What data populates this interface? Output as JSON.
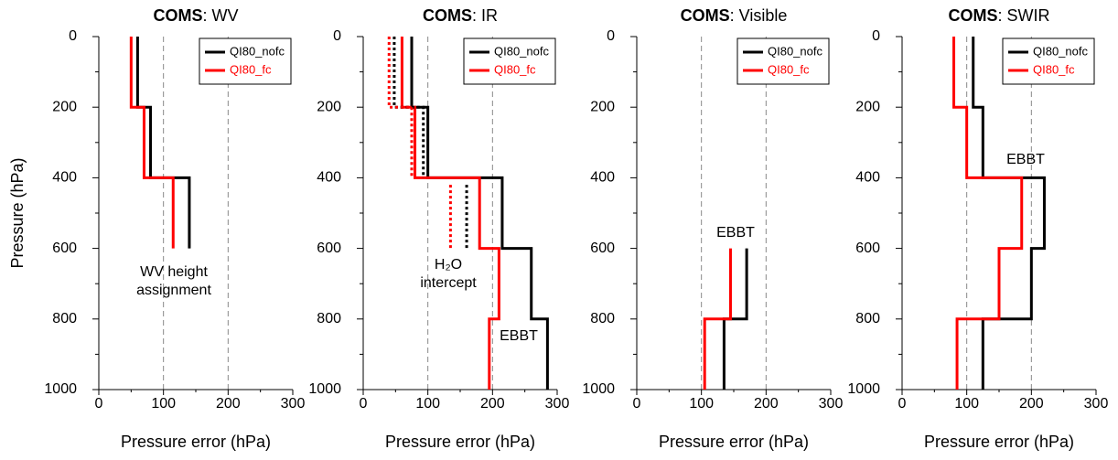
{
  "chart_data": [
    {
      "type": "line",
      "title_prefix": "COMS",
      "title": ": WV",
      "xlabel": "Pressure error (hPa)",
      "ylabel": "Pressure (hPa)",
      "xlim": [
        0,
        300
      ],
      "xticks": [
        0,
        100,
        200,
        300
      ],
      "ylim": [
        1000,
        0
      ],
      "yticks": [
        0,
        200,
        400,
        600,
        800,
        1000
      ],
      "grid": true,
      "legend": "upper right",
      "series": [
        {
          "name": "QI80_nofc",
          "color": "#000000",
          "x": [
            60,
            60,
            80,
            80,
            140,
            140
          ],
          "y": [
            0,
            200,
            200,
            400,
            400,
            600
          ]
        },
        {
          "name": "QI80_fc",
          "color": "#ff0000",
          "x": [
            50,
            50,
            70,
            70,
            115,
            115
          ],
          "y": [
            0,
            200,
            200,
            400,
            400,
            600
          ]
        }
      ],
      "annotations": [
        [
          "WV height",
          "assignment"
        ]
      ]
    },
    {
      "type": "line",
      "title_prefix": "COMS",
      "title": ": IR",
      "xlabel": "Pressure error (hPa)",
      "xlim": [
        0,
        300
      ],
      "xticks": [
        0,
        100,
        200,
        300
      ],
      "ylim": [
        1000,
        0
      ],
      "yticks": [
        0,
        200,
        400,
        600,
        800,
        1000
      ],
      "grid": true,
      "legend": "upper right",
      "series": [
        {
          "name": "QI80_nofc",
          "color": "#000000",
          "x": [
            75,
            75,
            100,
            100,
            215,
            215,
            260,
            260,
            285,
            285
          ],
          "y": [
            0,
            200,
            200,
            400,
            400,
            600,
            600,
            800,
            800,
            1000
          ]
        },
        {
          "name": "QI80_fc",
          "color": "#ff0000",
          "x": [
            60,
            60,
            80,
            80,
            180,
            180,
            210,
            210,
            195,
            195
          ],
          "y": [
            0,
            200,
            200,
            400,
            400,
            600,
            600,
            800,
            800,
            1000
          ]
        },
        {
          "color": "#000000",
          "dash": true,
          "x": [
            48,
            48,
            93,
            93,
            null,
            160,
            160
          ],
          "y": [
            0,
            200,
            200,
            400,
            null,
            420,
            600
          ]
        },
        {
          "color": "#ff0000",
          "dash": true,
          "x": [
            40,
            40,
            75,
            75,
            null,
            135,
            135
          ],
          "y": [
            0,
            200,
            200,
            400,
            null,
            420,
            600
          ]
        }
      ],
      "annotations": [
        [
          "H₂O",
          "intercept"
        ],
        [
          "EBBT"
        ]
      ]
    },
    {
      "type": "line",
      "title_prefix": "COMS",
      "title": ": Visible",
      "xlabel": "Pressure error (hPa)",
      "xlim": [
        0,
        300
      ],
      "xticks": [
        0,
        100,
        200,
        300
      ],
      "ylim": [
        1000,
        0
      ],
      "yticks": [
        0,
        200,
        400,
        600,
        800,
        1000
      ],
      "grid": true,
      "legend": "upper right",
      "series": [
        {
          "name": "QI80_nofc",
          "color": "#000000",
          "x": [
            170,
            170,
            135,
            135
          ],
          "y": [
            600,
            800,
            800,
            1000
          ]
        },
        {
          "name": "QI80_fc",
          "color": "#ff0000",
          "x": [
            145,
            145,
            105,
            105
          ],
          "y": [
            600,
            800,
            800,
            1000
          ]
        }
      ],
      "annotations": [
        [
          "EBBT"
        ]
      ]
    },
    {
      "type": "line",
      "title_prefix": "COMS",
      "title": ": SWIR",
      "xlabel": "Pressure error (hPa)",
      "xlim": [
        0,
        300
      ],
      "xticks": [
        0,
        100,
        200,
        300
      ],
      "ylim": [
        1000,
        0
      ],
      "yticks": [
        0,
        200,
        400,
        600,
        800,
        1000
      ],
      "grid": true,
      "legend": "upper right",
      "series": [
        {
          "name": "QI80_nofc",
          "color": "#000000",
          "x": [
            110,
            110,
            125,
            125,
            220,
            220,
            200,
            200,
            125,
            125
          ],
          "y": [
            0,
            200,
            200,
            400,
            400,
            600,
            600,
            800,
            800,
            1000
          ]
        },
        {
          "name": "QI80_fc",
          "color": "#ff0000",
          "x": [
            80,
            80,
            100,
            100,
            185,
            185,
            150,
            150,
            85,
            85
          ],
          "y": [
            0,
            200,
            200,
            400,
            400,
            600,
            600,
            800,
            800,
            1000
          ]
        }
      ],
      "annotations": [
        [
          "EBBT"
        ]
      ]
    }
  ]
}
